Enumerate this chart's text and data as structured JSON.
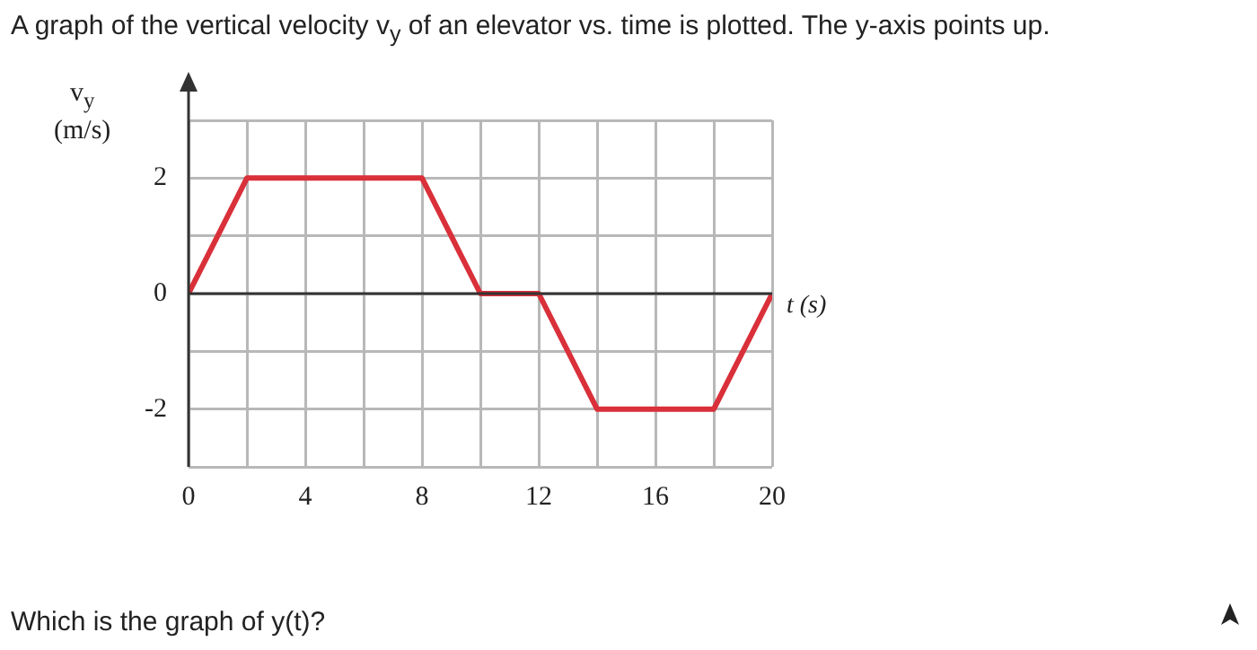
{
  "chart_data": {
    "type": "line",
    "title": "A graph of the vertical velocity v$_{y}$ of an elevator vs. time is plotted. The y-axis points up.",
    "xlabel": "t (s)",
    "ylabel": "v$_{y}$ (m/s)",
    "annotations": [
      "Which is the graph of y(t)?"
    ],
    "x": [
      0,
      2,
      8,
      10,
      12,
      14,
      18,
      20
    ],
    "series": [
      {
        "color": "#d9303a",
        "values": [
          0,
          2,
          2,
          0,
          0,
          -2,
          -2,
          0
        ]
      }
    ],
    "xlim": [
      0,
      20
    ],
    "ylim": [
      -3,
      3
    ],
    "xticks": [
      0,
      {
        "value": 2,
        "label": null
      },
      4,
      {
        "value": 6,
        "label": null
      },
      8,
      {
        "value": 10,
        "label": null
      },
      12,
      {
        "value": 14,
        "label": null
      },
      16,
      {
        "value": 18,
        "label": null
      },
      20
    ],
    "yticks": [
      {
        "value": -3,
        "label": null
      },
      -2,
      {
        "value": -1,
        "label": null
      },
      0,
      {
        "value": 1,
        "label": null
      },
      2,
      {
        "value": 3,
        "label": null
      }
    ],
    "grid": true,
    "marker": "none",
    "line_style": "solid",
    "legend": false
  }
}
